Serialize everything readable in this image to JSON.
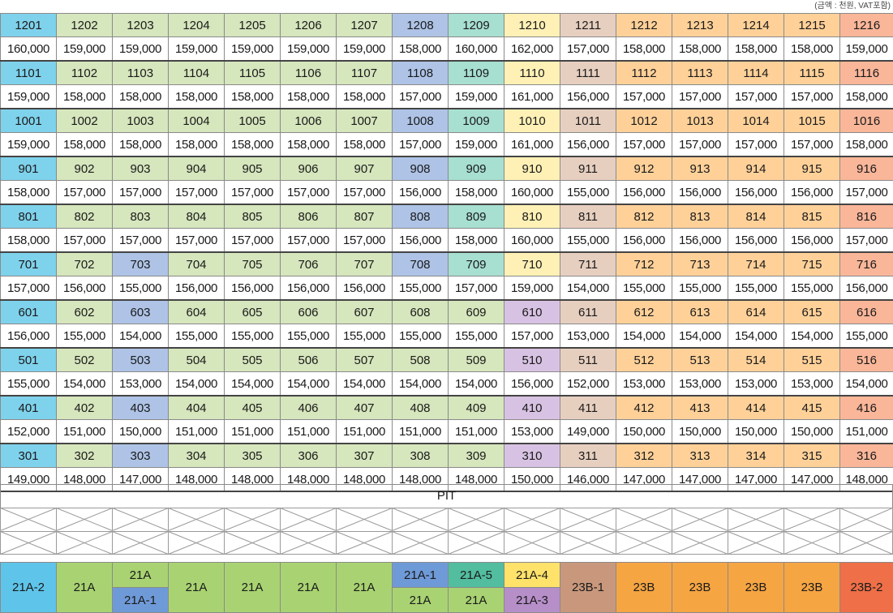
{
  "note": "(금액 : 천원, VAT포함)",
  "pit_label": "PIT",
  "floors": [
    {
      "units": [
        "1201",
        "1202",
        "1203",
        "1204",
        "1205",
        "1206",
        "1207",
        "1208",
        "1209",
        "1210",
        "1211",
        "1212",
        "1213",
        "1214",
        "1215",
        "1216"
      ],
      "prices": [
        "160,000",
        "159,000",
        "159,000",
        "159,000",
        "159,000",
        "159,000",
        "159,000",
        "158,000",
        "160,000",
        "162,000",
        "157,000",
        "158,000",
        "158,000",
        "158,000",
        "158,000",
        "159,000"
      ]
    },
    {
      "units": [
        "1101",
        "1102",
        "1103",
        "1104",
        "1105",
        "1106",
        "1107",
        "1108",
        "1109",
        "1110",
        "1111",
        "1112",
        "1113",
        "1114",
        "1115",
        "1116"
      ],
      "prices": [
        "159,000",
        "158,000",
        "158,000",
        "158,000",
        "158,000",
        "158,000",
        "158,000",
        "157,000",
        "159,000",
        "161,000",
        "156,000",
        "157,000",
        "157,000",
        "157,000",
        "157,000",
        "158,000"
      ]
    },
    {
      "units": [
        "1001",
        "1002",
        "1003",
        "1004",
        "1005",
        "1006",
        "1007",
        "1008",
        "1009",
        "1010",
        "1011",
        "1012",
        "1013",
        "1014",
        "1015",
        "1016"
      ],
      "prices": [
        "159,000",
        "158,000",
        "158,000",
        "158,000",
        "158,000",
        "158,000",
        "158,000",
        "157,000",
        "159,000",
        "161,000",
        "156,000",
        "157,000",
        "157,000",
        "157,000",
        "157,000",
        "158,000"
      ]
    },
    {
      "units": [
        "901",
        "902",
        "903",
        "904",
        "905",
        "906",
        "907",
        "908",
        "909",
        "910",
        "911",
        "912",
        "913",
        "914",
        "915",
        "916"
      ],
      "prices": [
        "158,000",
        "157,000",
        "157,000",
        "157,000",
        "157,000",
        "157,000",
        "157,000",
        "156,000",
        "158,000",
        "160,000",
        "155,000",
        "156,000",
        "156,000",
        "156,000",
        "156,000",
        "157,000"
      ]
    },
    {
      "units": [
        "801",
        "802",
        "803",
        "804",
        "805",
        "806",
        "807",
        "808",
        "809",
        "810",
        "811",
        "812",
        "813",
        "814",
        "815",
        "816"
      ],
      "prices": [
        "158,000",
        "157,000",
        "157,000",
        "157,000",
        "157,000",
        "157,000",
        "157,000",
        "156,000",
        "158,000",
        "160,000",
        "155,000",
        "156,000",
        "156,000",
        "156,000",
        "156,000",
        "157,000"
      ]
    },
    {
      "units": [
        "701",
        "702",
        "703",
        "704",
        "705",
        "706",
        "707",
        "708",
        "709",
        "710",
        "711",
        "712",
        "713",
        "714",
        "715",
        "716"
      ],
      "prices": [
        "157,000",
        "156,000",
        "155,000",
        "156,000",
        "156,000",
        "156,000",
        "156,000",
        "155,000",
        "157,000",
        "159,000",
        "154,000",
        "155,000",
        "155,000",
        "155,000",
        "155,000",
        "156,000"
      ]
    },
    {
      "units": [
        "601",
        "602",
        "603",
        "604",
        "605",
        "606",
        "607",
        "608",
        "609",
        "610",
        "611",
        "612",
        "613",
        "614",
        "615",
        "616"
      ],
      "prices": [
        "156,000",
        "155,000",
        "154,000",
        "155,000",
        "155,000",
        "155,000",
        "155,000",
        "155,000",
        "155,000",
        "157,000",
        "153,000",
        "154,000",
        "154,000",
        "154,000",
        "154,000",
        "155,000"
      ]
    },
    {
      "units": [
        "501",
        "502",
        "503",
        "504",
        "505",
        "506",
        "507",
        "508",
        "509",
        "510",
        "511",
        "512",
        "513",
        "514",
        "515",
        "516"
      ],
      "prices": [
        "155,000",
        "154,000",
        "153,000",
        "154,000",
        "154,000",
        "154,000",
        "154,000",
        "154,000",
        "154,000",
        "156,000",
        "152,000",
        "153,000",
        "153,000",
        "153,000",
        "153,000",
        "154,000"
      ]
    },
    {
      "units": [
        "401",
        "402",
        "403",
        "404",
        "405",
        "406",
        "407",
        "408",
        "409",
        "410",
        "411",
        "412",
        "413",
        "414",
        "415",
        "416"
      ],
      "prices": [
        "152,000",
        "151,000",
        "150,000",
        "151,000",
        "151,000",
        "151,000",
        "151,000",
        "151,000",
        "151,000",
        "153,000",
        "149,000",
        "150,000",
        "150,000",
        "150,000",
        "150,000",
        "151,000"
      ]
    },
    {
      "units": [
        "301",
        "302",
        "303",
        "304",
        "305",
        "306",
        "307",
        "308",
        "309",
        "310",
        "311",
        "312",
        "313",
        "314",
        "315",
        "316"
      ],
      "prices": [
        "149,000",
        "148,000",
        "147,000",
        "148,000",
        "148,000",
        "148,000",
        "148,000",
        "148,000",
        "148,000",
        "150,000",
        "146,000",
        "147,000",
        "147,000",
        "147,000",
        "147,000",
        "148,000"
      ]
    }
  ],
  "types": [
    {
      "top": "21A-2",
      "bottom": null
    },
    {
      "top": "21A",
      "bottom": null
    },
    {
      "top": "21A",
      "bottom": "21A-1"
    },
    {
      "top": "21A",
      "bottom": null
    },
    {
      "top": "21A",
      "bottom": null
    },
    {
      "top": "21A",
      "bottom": null
    },
    {
      "top": "21A",
      "bottom": null
    },
    {
      "top": "21A-1",
      "bottom": "21A"
    },
    {
      "top": "21A-5",
      "bottom": "21A"
    },
    {
      "top": "21A-4",
      "bottom": "21A-3"
    },
    {
      "top": "23B-1",
      "bottom": null
    },
    {
      "top": "23B",
      "bottom": null
    },
    {
      "top": "23B",
      "bottom": null
    },
    {
      "top": "23B",
      "bottom": null
    },
    {
      "top": "23B",
      "bottom": null
    },
    {
      "top": "23B-2",
      "bottom": null
    }
  ],
  "colors": {
    "sky": "#7fd2ec",
    "light_green": "#d6e6bd",
    "blue": "#aec3e6",
    "turquoise": "#a7dfd1",
    "yellow": "#fff1b5",
    "purple": "#d8c2e3",
    "tan": "#e7cfc0",
    "orange": "#ffd199",
    "salmon": "#fab699"
  }
}
